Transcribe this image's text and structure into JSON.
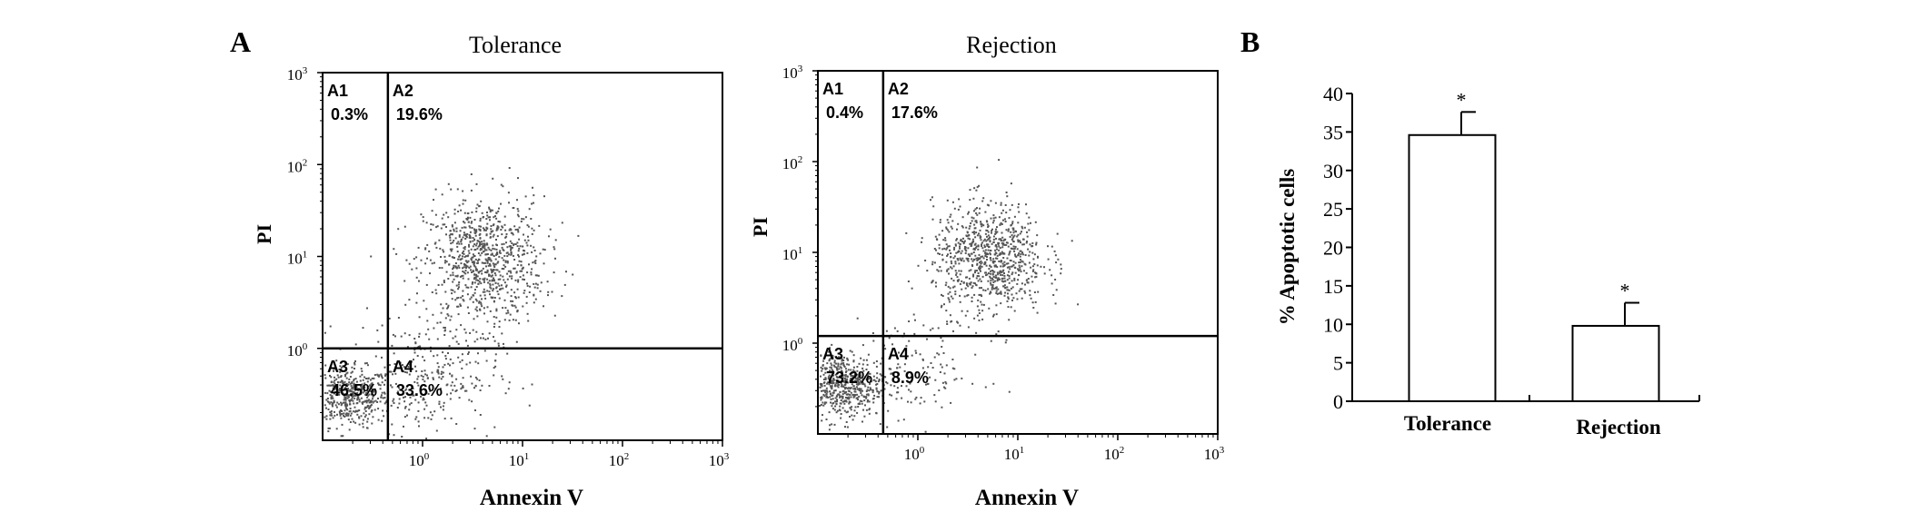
{
  "figure": {
    "panel_a_letter": "A",
    "panel_b_letter": "B"
  },
  "chart_data": [
    {
      "type": "scatter",
      "title": "Tolerance",
      "xlabel": "Annexin V",
      "ylabel": "PI",
      "scale": "log",
      "xlim": [
        0.1,
        1000
      ],
      "ylim": [
        0.1,
        1000
      ],
      "x_ticks": [
        {
          "value": 1,
          "base": "10",
          "exp": "0"
        },
        {
          "value": 10,
          "base": "10",
          "exp": "1"
        },
        {
          "value": 100,
          "base": "10",
          "exp": "2"
        },
        {
          "value": 1000,
          "base": "10",
          "exp": "3"
        }
      ],
      "y_ticks": [
        {
          "value": 1,
          "base": "10",
          "exp": "0"
        },
        {
          "value": 10,
          "base": "10",
          "exp": "1"
        },
        {
          "value": 100,
          "base": "10",
          "exp": "2"
        },
        {
          "value": 1000,
          "base": "10",
          "exp": "3"
        }
      ],
      "gate_x": 0.45,
      "gate_y": 1.0,
      "quadrants": [
        {
          "name": "A1",
          "percent": "0.3%"
        },
        {
          "name": "A2",
          "percent": "19.6%"
        },
        {
          "name": "A3",
          "percent": "46.5%"
        },
        {
          "name": "A4",
          "percent": "33.6%"
        }
      ],
      "populations": [
        {
          "count": 440,
          "x_center": 0.18,
          "y_center": 0.3,
          "spread_x": 0.2,
          "spread_y": 0.16
        },
        {
          "count": 900,
          "x_center": 4.0,
          "y_center": 9.0,
          "spread_x": 0.3,
          "spread_y": 0.35
        },
        {
          "count": 300,
          "x_center": 1.0,
          "y_center": 0.5,
          "spread_x": 0.38,
          "spread_y": 0.3
        }
      ]
    },
    {
      "type": "scatter",
      "title": "Rejection",
      "xlabel": "Annexin V",
      "ylabel": "PI",
      "scale": "log",
      "xlim": [
        0.1,
        1000
      ],
      "ylim": [
        0.1,
        1000
      ],
      "x_ticks": [
        {
          "value": 1,
          "base": "10",
          "exp": "0"
        },
        {
          "value": 10,
          "base": "10",
          "exp": "1"
        },
        {
          "value": 100,
          "base": "10",
          "exp": "2"
        },
        {
          "value": 1000,
          "base": "10",
          "exp": "3"
        }
      ],
      "y_ticks": [
        {
          "value": 1,
          "base": "10",
          "exp": "0"
        },
        {
          "value": 10,
          "base": "10",
          "exp": "1"
        },
        {
          "value": 100,
          "base": "10",
          "exp": "2"
        },
        {
          "value": 1000,
          "base": "10",
          "exp": "3"
        }
      ],
      "gate_x": 0.45,
      "gate_y": 1.2,
      "quadrants": [
        {
          "name": "A1",
          "percent": "0.4%"
        },
        {
          "name": "A2",
          "percent": "17.6%"
        },
        {
          "name": "A3",
          "percent": "73.2%"
        },
        {
          "name": "A4",
          "percent": "8.9%"
        }
      ],
      "populations": [
        {
          "count": 560,
          "x_center": 0.17,
          "y_center": 0.35,
          "spread_x": 0.2,
          "spread_y": 0.18
        },
        {
          "count": 850,
          "x_center": 5.0,
          "y_center": 9.0,
          "spread_x": 0.28,
          "spread_y": 0.3
        },
        {
          "count": 150,
          "x_center": 0.9,
          "y_center": 0.5,
          "spread_x": 0.35,
          "spread_y": 0.3
        }
      ]
    },
    {
      "type": "bar",
      "title": "",
      "xlabel": "",
      "ylabel": "% Apoptotic cells",
      "ylim": [
        0,
        40
      ],
      "y_ticks": [
        0,
        5,
        10,
        15,
        20,
        25,
        30,
        35,
        40
      ],
      "categories": [
        "Tolerance",
        "Rejection"
      ],
      "values": [
        34.6,
        9.8
      ],
      "errors": [
        3.0,
        3.0
      ],
      "annotations": [
        "*",
        "*"
      ]
    }
  ]
}
